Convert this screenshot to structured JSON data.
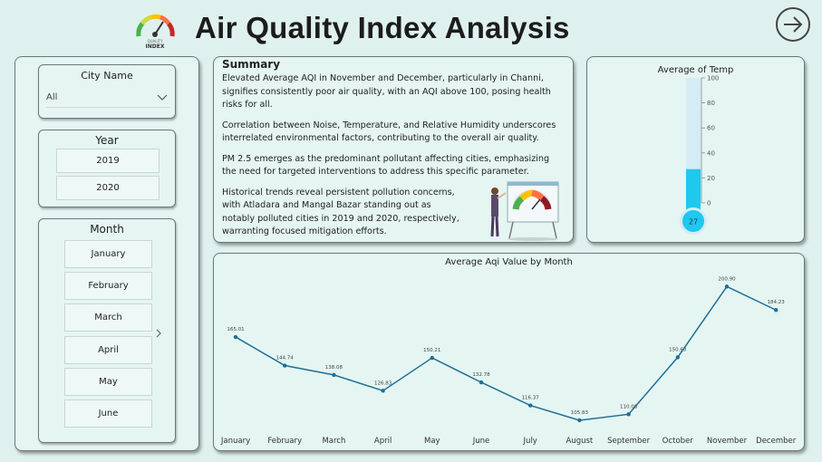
{
  "header": {
    "title": "Air Quality Index Analysis",
    "logo_text_1": "QUALITY",
    "logo_text_2": "INDEX"
  },
  "filters": {
    "city": {
      "label": "City Name",
      "value": "All"
    },
    "year": {
      "label": "Year",
      "options": [
        "2019",
        "2020"
      ]
    },
    "month": {
      "label": "Month",
      "options": [
        "January",
        "February",
        "March",
        "April",
        "May",
        "June"
      ]
    }
  },
  "summary": {
    "title": "Summary",
    "paragraphs": [
      "Elevated Average AQI in November and December, particularly in Channi, signifies consistently poor air quality, with an AQI above 100, posing health risks for all.",
      "Correlation between Noise, Temperature, and Relative Humidity underscores interrelated environmental factors, contributing to the overall air quality.",
      "PM 2.5 emerges as the predominant pollutant affecting cities, emphasizing the need for targeted interventions to address this specific parameter.",
      "Historical trends reveal persistent pollution concerns, with Atladara and Mangal Bazar standing out as notably polluted cities in 2019 and 2020, respectively, warranting focused mitigation efforts."
    ]
  },
  "temp_gauge": {
    "title": "Average of Temp",
    "value": 27,
    "value_label": "27",
    "min": 0,
    "max": 100,
    "ticks": [
      "100",
      "80",
      "60",
      "40",
      "20",
      "0"
    ],
    "tick_values": [
      100,
      80,
      60,
      40,
      20,
      0
    ],
    "fill_color": "#1ec8ee",
    "track_color": "#d3ecf5"
  },
  "chart_data": {
    "type": "line",
    "title": "Average Aqi Value by Month",
    "categories": [
      "January",
      "February",
      "March",
      "April",
      "May",
      "June",
      "July",
      "August",
      "September",
      "October",
      "November",
      "December"
    ],
    "values": [
      165.01,
      144.74,
      138.08,
      126.83,
      150.21,
      132.78,
      116.37,
      105.83,
      110.08,
      150.63,
      200.9,
      184.23
    ],
    "value_labels": [
      "165.01",
      "144.74",
      "138.08",
      "126.83",
      "150.21",
      "132.78",
      "116.37",
      "105.83",
      "110.08",
      "150.63",
      "200.90",
      "184.23"
    ],
    "ylim": [
      100,
      205
    ],
    "line_color": "#1f6f96",
    "grid": false
  }
}
